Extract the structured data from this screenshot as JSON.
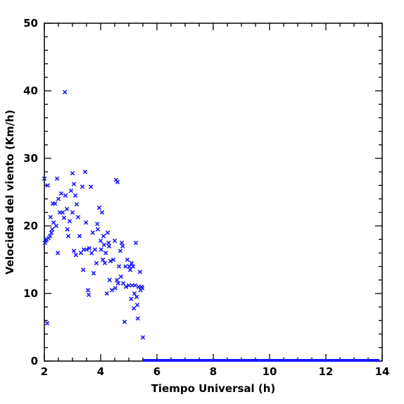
{
  "chart_data": {
    "type": "scatter",
    "xlabel": "Tiempo Universal (h)",
    "ylabel": "Velocidad del viento (Km/h)",
    "xlim": [
      2,
      14
    ],
    "ylim": [
      0,
      50
    ],
    "xticks": [
      2,
      4,
      6,
      8,
      10,
      12,
      14
    ],
    "yticks": [
      0,
      10,
      20,
      30,
      40,
      50
    ],
    "marker": "x",
    "marker_color": "#1a1aff",
    "grid": false,
    "series": [
      {
        "points": [
          [
            2.0,
            27.0
          ],
          [
            2.02,
            17.5
          ],
          [
            2.05,
            17.8
          ],
          [
            2.08,
            18.0
          ],
          [
            2.1,
            5.6
          ],
          [
            2.12,
            26.0
          ],
          [
            2.15,
            18.2
          ],
          [
            2.2,
            18.5
          ],
          [
            2.22,
            21.3
          ],
          [
            2.25,
            19.0
          ],
          [
            2.28,
            19.5
          ],
          [
            2.3,
            23.3
          ],
          [
            2.33,
            20.5
          ],
          [
            2.38,
            23.3
          ],
          [
            2.42,
            20.0
          ],
          [
            2.45,
            27.0
          ],
          [
            2.48,
            16.0
          ],
          [
            2.5,
            24.0
          ],
          [
            2.55,
            22.0
          ],
          [
            2.6,
            24.8
          ],
          [
            2.65,
            22.0
          ],
          [
            2.7,
            21.2
          ],
          [
            2.73,
            39.8
          ],
          [
            2.75,
            24.5
          ],
          [
            2.8,
            22.5
          ],
          [
            2.82,
            19.5
          ],
          [
            2.85,
            18.5
          ],
          [
            2.9,
            20.7
          ],
          [
            2.95,
            25.2
          ],
          [
            3.0,
            27.8
          ],
          [
            3.0,
            22.0
          ],
          [
            3.05,
            26.2
          ],
          [
            3.05,
            16.3
          ],
          [
            3.1,
            24.5
          ],
          [
            3.12,
            15.7
          ],
          [
            3.15,
            23.2
          ],
          [
            3.2,
            21.3
          ],
          [
            3.25,
            18.5
          ],
          [
            3.3,
            16.0
          ],
          [
            3.35,
            25.8
          ],
          [
            3.38,
            13.5
          ],
          [
            3.4,
            16.5
          ],
          [
            3.45,
            28.0
          ],
          [
            3.48,
            20.5
          ],
          [
            3.5,
            16.5
          ],
          [
            3.55,
            10.5
          ],
          [
            3.58,
            9.8
          ],
          [
            3.6,
            16.7
          ],
          [
            3.65,
            25.8
          ],
          [
            3.68,
            16.0
          ],
          [
            3.72,
            19.0
          ],
          [
            3.75,
            13.0
          ],
          [
            3.8,
            16.5
          ],
          [
            3.85,
            14.5
          ],
          [
            3.88,
            20.3
          ],
          [
            3.9,
            19.5
          ],
          [
            3.95,
            22.7
          ],
          [
            4.0,
            17.8
          ],
          [
            4.02,
            16.5
          ],
          [
            4.05,
            22.0
          ],
          [
            4.08,
            15.0
          ],
          [
            4.1,
            18.5
          ],
          [
            4.12,
            17.2
          ],
          [
            4.15,
            14.5
          ],
          [
            4.18,
            16.0
          ],
          [
            4.22,
            10.0
          ],
          [
            4.25,
            19.0
          ],
          [
            4.28,
            17.5
          ],
          [
            4.3,
            17.0
          ],
          [
            4.32,
            12.0
          ],
          [
            4.35,
            14.8
          ],
          [
            4.4,
            10.5
          ],
          [
            4.45,
            15.0
          ],
          [
            4.5,
            17.8
          ],
          [
            4.52,
            10.8
          ],
          [
            4.55,
            26.8
          ],
          [
            4.58,
            12.0
          ],
          [
            4.6,
            26.5
          ],
          [
            4.62,
            11.5
          ],
          [
            4.65,
            14.0
          ],
          [
            4.7,
            16.3
          ],
          [
            4.72,
            12.5
          ],
          [
            4.75,
            17.5
          ],
          [
            4.78,
            17.0
          ],
          [
            4.8,
            11.5
          ],
          [
            4.85,
            5.8
          ],
          [
            4.88,
            14.0
          ],
          [
            4.9,
            11.0
          ],
          [
            4.95,
            15.0
          ],
          [
            5.0,
            11.2
          ],
          [
            5.02,
            14.0
          ],
          [
            5.05,
            13.5
          ],
          [
            5.08,
            9.2
          ],
          [
            5.1,
            14.5
          ],
          [
            5.12,
            11.2
          ],
          [
            5.15,
            14.0
          ],
          [
            5.18,
            7.8
          ],
          [
            5.2,
            10.0
          ],
          [
            5.22,
            11.2
          ],
          [
            5.25,
            17.5
          ],
          [
            5.28,
            9.5
          ],
          [
            5.3,
            8.3
          ],
          [
            5.32,
            6.3
          ],
          [
            5.35,
            11.0
          ],
          [
            5.4,
            13.2
          ],
          [
            5.42,
            10.5
          ],
          [
            5.45,
            11.0
          ],
          [
            5.48,
            10.8
          ],
          [
            5.5,
            3.5
          ]
        ]
      }
    ],
    "baseline_segment": {
      "x_from": 5.5,
      "x_to": 13.9,
      "y": 0
    }
  }
}
